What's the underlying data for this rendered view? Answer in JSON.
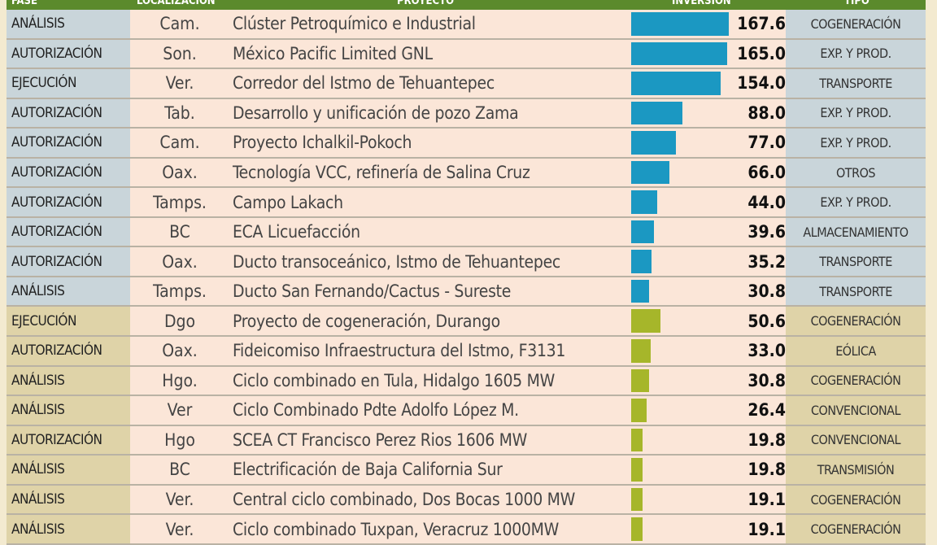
{
  "header": {
    "fase": "FASE",
    "localizacion": "LOCALIZACIÓN",
    "proyecto": "PROYECTO",
    "inversion": "INVERSIÓN",
    "tipo": "TIPO"
  },
  "colors": {
    "header": "#5b8a2c",
    "blue_bar": "#1b98c2",
    "green_bar": "#a6b62a"
  },
  "chart_data": {
    "type": "table",
    "columns": [
      "FASE",
      "LOCALIZACIÓN",
      "PROYECTO",
      "INVERSIÓN",
      "TIPO"
    ],
    "rows": [
      {
        "fase": "ANÁLISIS",
        "loc": "Cam.",
        "proyecto": "Clúster Petroquímico e Industrial",
        "inversion": "167.6",
        "tipo": "COGENERACIÓN",
        "group": "blue"
      },
      {
        "fase": "AUTORIZACIÓN",
        "loc": "Son.",
        "proyecto": "México Pacific Limited GNL",
        "inversion": "165.0",
        "tipo": "EXP. Y PROD.",
        "group": "blue"
      },
      {
        "fase": "EJECUCIÓN",
        "loc": "Ver.",
        "proyecto": "Corredor del Istmo de Tehuantepec",
        "inversion": "154.0",
        "tipo": "TRANSPORTE",
        "group": "blue"
      },
      {
        "fase": "AUTORIZACIÓN",
        "loc": "Tab.",
        "proyecto": "Desarrollo y unificación de pozo Zama",
        "inversion": "88.0",
        "tipo": "EXP. Y PROD.",
        "group": "blue"
      },
      {
        "fase": "AUTORIZACIÓN",
        "loc": "Cam.",
        "proyecto": "Proyecto Ichalkil-Pokoch",
        "inversion": "77.0",
        "tipo": "EXP. Y PROD.",
        "group": "blue"
      },
      {
        "fase": "AUTORIZACIÓN",
        "loc": "Oax.",
        "proyecto": "Tecnología VCC, refinería de Salina Cruz",
        "inversion": "66.0",
        "tipo": "OTROS",
        "group": "blue"
      },
      {
        "fase": "AUTORIZACIÓN",
        "loc": "Tamps.",
        "proyecto": "Campo Lakach",
        "inversion": "44.0",
        "tipo": "EXP. Y PROD.",
        "group": "blue"
      },
      {
        "fase": "AUTORIZACIÓN",
        "loc": "BC",
        "proyecto": "ECA Licuefacción",
        "inversion": "39.6",
        "tipo": "ALMACENAMIENTO",
        "group": "blue"
      },
      {
        "fase": "AUTORIZACIÓN",
        "loc": "Oax.",
        "proyecto": "Ducto transoceánico, Istmo de Tehuantepec",
        "inversion": "35.2",
        "tipo": "TRANSPORTE",
        "group": "blue"
      },
      {
        "fase": "ANÁLISIS",
        "loc": "Tamps.",
        "proyecto": "Ducto San Fernando/Cactus - Sureste",
        "inversion": "30.8",
        "tipo": "TRANSPORTE",
        "group": "blue"
      },
      {
        "fase": "EJECUCIÓN",
        "loc": "Dgo",
        "proyecto": "Proyecto de cogeneración, Durango",
        "inversion": "50.6",
        "tipo": "COGENERACIÓN",
        "group": "green"
      },
      {
        "fase": "AUTORIZACIÓN",
        "loc": "Oax.",
        "proyecto": "Fideicomiso Infraestructura del Istmo, F3131",
        "inversion": "33.0",
        "tipo": "EÓLICA",
        "group": "green"
      },
      {
        "fase": "ANÁLISIS",
        "loc": "Hgo.",
        "proyecto": "Ciclo combinado en Tula, Hidalgo 1605 MW",
        "inversion": "30.8",
        "tipo": "COGENERACIÓN",
        "group": "green"
      },
      {
        "fase": "ANÁLISIS",
        "loc": "Ver",
        "proyecto": "Ciclo Combinado Pdte Adolfo López M.",
        "inversion": "26.4",
        "tipo": "CONVENCIONAL",
        "group": "green"
      },
      {
        "fase": "AUTORIZACIÓN",
        "loc": "Hgo",
        "proyecto": "SCEA CT Francisco Perez Rios 1606 MW",
        "inversion": "19.8",
        "tipo": "CONVENCIONAL",
        "group": "green"
      },
      {
        "fase": "ANÁLISIS",
        "loc": "BC",
        "proyecto": "Electrificación de Baja California Sur",
        "inversion": "19.8",
        "tipo": "TRANSMISIÓN",
        "group": "green"
      },
      {
        "fase": "ANÁLISIS",
        "loc": "Ver.",
        "proyecto": "Central ciclo combinado, Dos Bocas 1000 MW",
        "inversion": "19.1",
        "tipo": "COGENERACIÓN",
        "group": "green"
      },
      {
        "fase": "ANÁLISIS",
        "loc": "Ver.",
        "proyecto": "Ciclo combinado Tuxpan, Veracruz 1000MW",
        "inversion": "19.1",
        "tipo": "COGENERACIÓN",
        "group": "green"
      }
    ]
  }
}
